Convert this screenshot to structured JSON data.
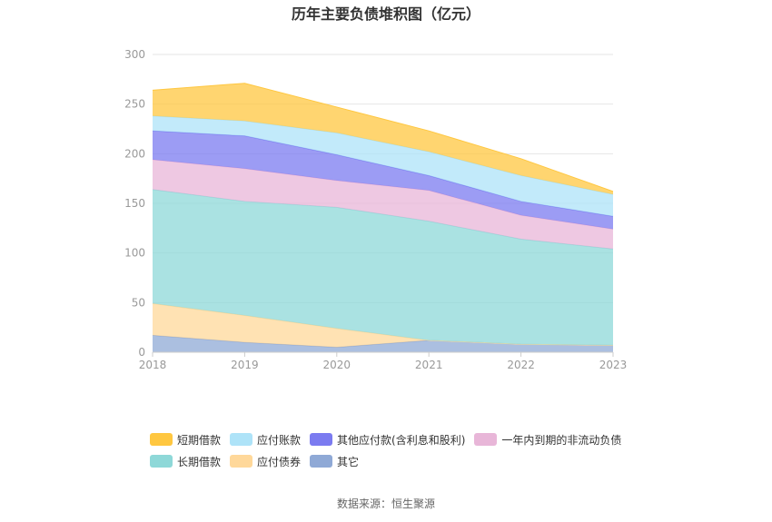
{
  "title": "历年主要负债堆积图（亿元）",
  "source": "数据来源：恒生聚源",
  "chart_data": {
    "type": "area",
    "stacked": true,
    "categories": [
      "2018",
      "2019",
      "2020",
      "2021",
      "2022",
      "2023"
    ],
    "ylim": [
      0,
      300
    ],
    "yticks": [
      0,
      50,
      100,
      150,
      200,
      250,
      300
    ],
    "grid": true,
    "legend_position": "bottom",
    "series": [
      {
        "name": "其它",
        "color": "#8fa9d6",
        "values": [
          17,
          10,
          5,
          12,
          8,
          7
        ]
      },
      {
        "name": "应付债券",
        "color": "#ffd89a",
        "values": [
          32,
          27,
          19,
          0,
          0,
          0
        ]
      },
      {
        "name": "长期借款",
        "color": "#8ed8d8",
        "values": [
          115,
          115,
          122,
          120,
          106,
          97
        ]
      },
      {
        "name": "一年内到期的非流动负债",
        "color": "#e8b6d8",
        "values": [
          30,
          33,
          27,
          31,
          24,
          20
        ]
      },
      {
        "name": "其他应付款(含利息和股利)",
        "color": "#7b7bf0",
        "values": [
          29,
          33,
          26,
          15,
          14,
          13
        ]
      },
      {
        "name": "应付账款",
        "color": "#aee3f8",
        "values": [
          15,
          15,
          22,
          24,
          26,
          22
        ]
      },
      {
        "name": "短期借款",
        "color": "#ffc740",
        "values": [
          26,
          38,
          26,
          21,
          17,
          3
        ]
      }
    ]
  },
  "legend_rows": [
    [
      "短期借款",
      "应付账款",
      "其他应付款(含利息和股利)",
      "一年内到期的非流动负债"
    ],
    [
      "长期借款",
      "应付债券",
      "其它"
    ]
  ]
}
